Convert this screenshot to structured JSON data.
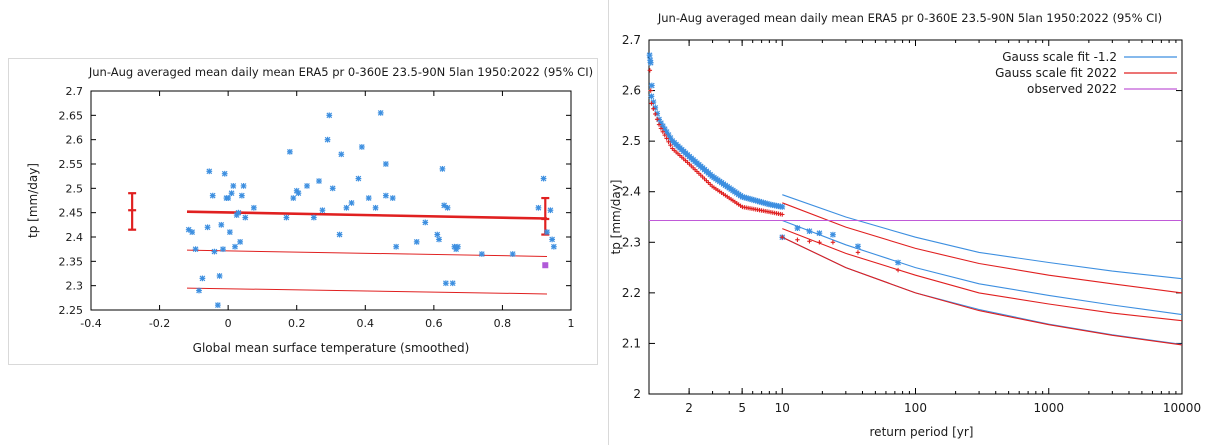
{
  "chart_data": [
    {
      "type": "scatter",
      "title": "Jun-Aug averaged mean daily mean ERA5 pr 0-360E 23.5-90N 5lan 1950:2022 (95% CI)",
      "xlabel": "Global mean surface temperature (smoothed)",
      "ylabel": "tp [mm/day]",
      "xlim": [
        -0.4,
        1.0
      ],
      "ylim": [
        2.25,
        2.7
      ],
      "xticks": [
        "-0.4",
        "-0.2",
        "0",
        "0.2",
        "0.4",
        "0.6",
        "0.8",
        "1"
      ],
      "yticks": [
        "2.25",
        "2.3",
        "2.35",
        "2.4",
        "2.45",
        "2.5",
        "2.55",
        "2.6",
        "2.65",
        "2.7"
      ],
      "grid": false,
      "colors": {
        "points": "#3d8fe0",
        "fit": "#e02020",
        "observed": "#b05ad8"
      },
      "series": [
        {
          "marker": "star",
          "points": [
            [
              -0.115,
              2.415
            ],
            [
              -0.105,
              2.41
            ],
            [
              -0.095,
              2.375
            ],
            [
              -0.085,
              2.29
            ],
            [
              -0.075,
              2.315
            ],
            [
              -0.06,
              2.42
            ],
            [
              -0.055,
              2.535
            ],
            [
              -0.045,
              2.485
            ],
            [
              -0.04,
              2.37
            ],
            [
              -0.03,
              2.26
            ],
            [
              -0.025,
              2.32
            ],
            [
              -0.02,
              2.425
            ],
            [
              -0.015,
              2.375
            ],
            [
              -0.01,
              2.53
            ],
            [
              -0.005,
              2.48
            ],
            [
              0.0,
              2.48
            ],
            [
              0.005,
              2.41
            ],
            [
              0.01,
              2.49
            ],
            [
              0.015,
              2.505
            ],
            [
              0.02,
              2.38
            ],
            [
              0.025,
              2.445
            ],
            [
              0.03,
              2.45
            ],
            [
              0.035,
              2.39
            ],
            [
              0.04,
              2.485
            ],
            [
              0.045,
              2.505
            ],
            [
              0.05,
              2.44
            ],
            [
              0.075,
              2.46
            ],
            [
              0.17,
              2.44
            ],
            [
              0.18,
              2.575
            ],
            [
              0.19,
              2.48
            ],
            [
              0.2,
              2.495
            ],
            [
              0.205,
              2.49
            ],
            [
              0.23,
              2.505
            ],
            [
              0.25,
              2.44
            ],
            [
              0.265,
              2.515
            ],
            [
              0.275,
              2.455
            ],
            [
              0.29,
              2.6
            ],
            [
              0.295,
              2.65
            ],
            [
              0.305,
              2.5
            ],
            [
              0.325,
              2.405
            ],
            [
              0.33,
              2.57
            ],
            [
              0.345,
              2.46
            ],
            [
              0.36,
              2.47
            ],
            [
              0.38,
              2.52
            ],
            [
              0.39,
              2.585
            ],
            [
              0.41,
              2.48
            ],
            [
              0.43,
              2.46
            ],
            [
              0.445,
              2.655
            ],
            [
              0.46,
              2.55
            ],
            [
              0.46,
              2.485
            ],
            [
              0.48,
              2.48
            ],
            [
              0.49,
              2.38
            ],
            [
              0.55,
              2.39
            ],
            [
              0.575,
              2.43
            ],
            [
              0.61,
              2.405
            ],
            [
              0.615,
              2.395
            ],
            [
              0.625,
              2.54
            ],
            [
              0.63,
              2.465
            ],
            [
              0.635,
              2.305
            ],
            [
              0.64,
              2.46
            ],
            [
              0.655,
              2.305
            ],
            [
              0.66,
              2.38
            ],
            [
              0.665,
              2.375
            ],
            [
              0.67,
              2.38
            ],
            [
              0.74,
              2.365
            ],
            [
              0.83,
              2.365
            ],
            [
              0.905,
              2.46
            ],
            [
              0.92,
              2.52
            ],
            [
              0.93,
              2.41
            ],
            [
              0.94,
              2.455
            ],
            [
              0.945,
              2.395
            ],
            [
              0.95,
              2.38
            ]
          ]
        }
      ],
      "fit_lines": [
        {
          "name": "central fit",
          "x": [
            -0.12,
            0.93
          ],
          "y": [
            2.452,
            2.438
          ],
          "width": "thick"
        },
        {
          "name": "upper",
          "x": [
            -0.12,
            0.93
          ],
          "y": [
            2.373,
            2.36
          ],
          "width": "thin"
        },
        {
          "name": "lower",
          "x": [
            -0.12,
            0.93
          ],
          "y": [
            2.295,
            2.283
          ],
          "width": "thin"
        }
      ],
      "error_bars": [
        {
          "x": -0.28,
          "y": 2.455,
          "low": 2.415,
          "high": 2.49
        },
        {
          "x": 0.925,
          "y": 2.437,
          "low": 2.405,
          "high": 2.48
        }
      ],
      "observed_point": {
        "x": 0.925,
        "y": 2.342
      }
    },
    {
      "type": "line",
      "title": "Jun-Aug averaged mean daily mean ERA5 pr 0-360E 23.5-90N 5lan 1950:2022 (95% CI)",
      "xlabel": "return period [yr]",
      "ylabel": "tp [mm/day]",
      "xscale": "log",
      "xlim": [
        1,
        10000
      ],
      "ylim": [
        2.0,
        2.7
      ],
      "xticks": [
        {
          "v": 2,
          "label": "2"
        },
        {
          "v": 5,
          "label": "5"
        },
        {
          "v": 10,
          "label": "10"
        },
        {
          "v": 100,
          "label": "100"
        },
        {
          "v": 1000,
          "label": "1000"
        },
        {
          "v": 10000,
          "label": "10000"
        }
      ],
      "yticks": [
        "2",
        "2.1",
        "2.2",
        "2.3",
        "2.4",
        "2.5",
        "2.6",
        "2.7"
      ],
      "grid": false,
      "legend_position": "top-right",
      "legend": [
        {
          "label": "Gauss scale fit -1.2",
          "color": "#3d8fe0"
        },
        {
          "label": "Gauss scale fit 2022",
          "color": "#e02020"
        },
        {
          "label": "observed 2022",
          "color": "#c05ad8"
        }
      ],
      "series": [
        {
          "color": "#3d8fe0",
          "x": [
            10,
            30,
            100,
            300,
            1000,
            3000,
            10000
          ],
          "y": [
            2.394,
            2.35,
            2.31,
            2.28,
            2.26,
            2.243,
            2.228
          ]
        },
        {
          "color": "#3d8fe0",
          "x": [
            10,
            30,
            100,
            300,
            1000,
            3000,
            10000
          ],
          "y": [
            2.343,
            2.295,
            2.25,
            2.218,
            2.195,
            2.176,
            2.157
          ]
        },
        {
          "color": "#3d8fe0",
          "x": [
            10,
            30,
            100,
            300,
            1000,
            3000,
            10000
          ],
          "y": [
            2.31,
            2.25,
            2.2,
            2.167,
            2.138,
            2.117,
            2.098
          ]
        },
        {
          "color": "#e02020",
          "x": [
            10,
            30,
            100,
            300,
            1000,
            3000,
            10000
          ],
          "y": [
            2.378,
            2.33,
            2.288,
            2.258,
            2.235,
            2.218,
            2.2
          ]
        },
        {
          "color": "#e02020",
          "x": [
            10,
            30,
            100,
            300,
            1000,
            3000,
            10000
          ],
          "y": [
            2.327,
            2.278,
            2.235,
            2.2,
            2.178,
            2.16,
            2.145
          ]
        },
        {
          "color": "#e02020",
          "x": [
            10,
            30,
            100,
            300,
            1000,
            3000,
            10000
          ],
          "y": [
            2.31,
            2.25,
            2.2,
            2.165,
            2.137,
            2.116,
            2.097
          ]
        },
        {
          "color": "#c05ad8",
          "x": [
            1,
            10000
          ],
          "y": [
            2.343,
            2.343
          ]
        }
      ],
      "observed_scatter": [
        {
          "color": "#3d8fe0",
          "curve": {
            "x": [
              1.01,
              1.2,
              1.5,
              2,
              3,
              5,
              8,
              10
            ],
            "y": [
              2.6,
              2.54,
              2.5,
              2.47,
              2.43,
              2.39,
              2.375,
              2.37
            ]
          },
          "extras": [
            [
              1.01,
              2.67
            ],
            [
              1.02,
              2.66
            ],
            [
              1.03,
              2.655
            ],
            [
              1.05,
              2.61
            ]
          ],
          "n": 70
        },
        {
          "color": "#e02020",
          "curve": {
            "x": [
              1.01,
              1.2,
              1.5,
              2,
              3,
              5,
              8,
              10
            ],
            "y": [
              2.585,
              2.53,
              2.485,
              2.455,
              2.41,
              2.37,
              2.36,
              2.355
            ]
          },
          "extras": [
            [
              1.015,
              2.64
            ],
            [
              1.03,
              2.6
            ]
          ],
          "n": 70
        }
      ],
      "fit_points": [
        {
          "color": "#3d8fe0",
          "points": [
            [
              10,
              2.31
            ],
            [
              13,
              2.328
            ],
            [
              16,
              2.322
            ],
            [
              19,
              2.318
            ],
            [
              24,
              2.315
            ],
            [
              37,
              2.292
            ],
            [
              74,
              2.26
            ]
          ]
        },
        {
          "color": "#e02020",
          "points": [
            [
              10,
              2.31
            ],
            [
              13,
              2.305
            ],
            [
              16,
              2.302
            ],
            [
              19,
              2.3
            ],
            [
              24,
              2.3
            ],
            [
              37,
              2.28
            ],
            [
              74,
              2.245
            ]
          ]
        }
      ]
    }
  ]
}
